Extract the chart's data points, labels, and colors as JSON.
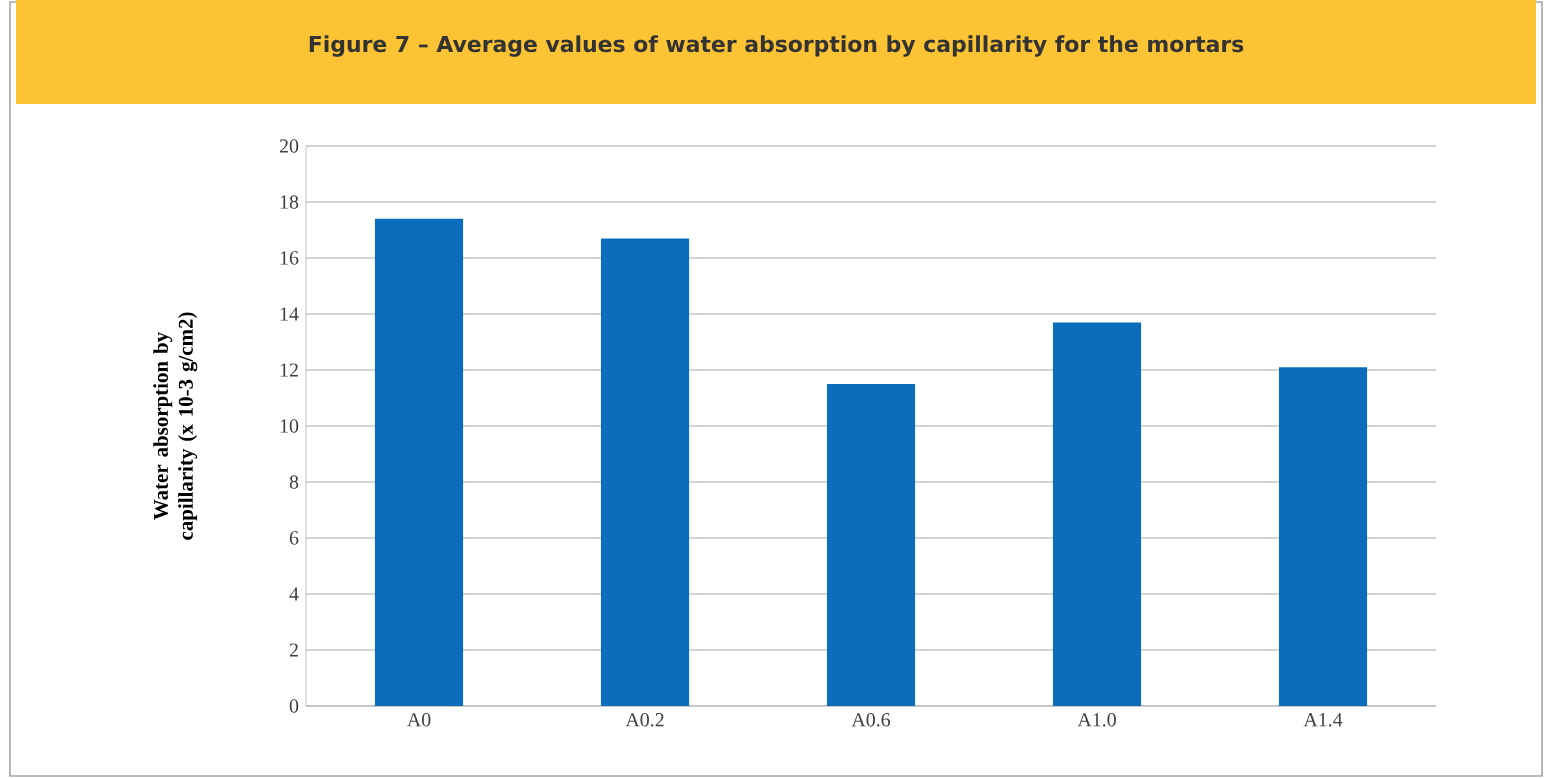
{
  "chart_data": {
    "type": "bar",
    "title": "Figure 7 – Average values of water absorption by capillarity for the mortars",
    "ylabel": "Water absorption by capillarity (x 10-3 g/cm2)",
    "categories": [
      "A0",
      "A0.2",
      "A0.6",
      "A1.0",
      "A1.4"
    ],
    "values": [
      17.4,
      16.7,
      11.5,
      13.7,
      12.1
    ],
    "color": "#0a6ebd",
    "ylim": [
      0,
      20
    ],
    "yticks": [
      0,
      2,
      4,
      6,
      8,
      10,
      12,
      14,
      16,
      18,
      20
    ],
    "grid": "y"
  }
}
